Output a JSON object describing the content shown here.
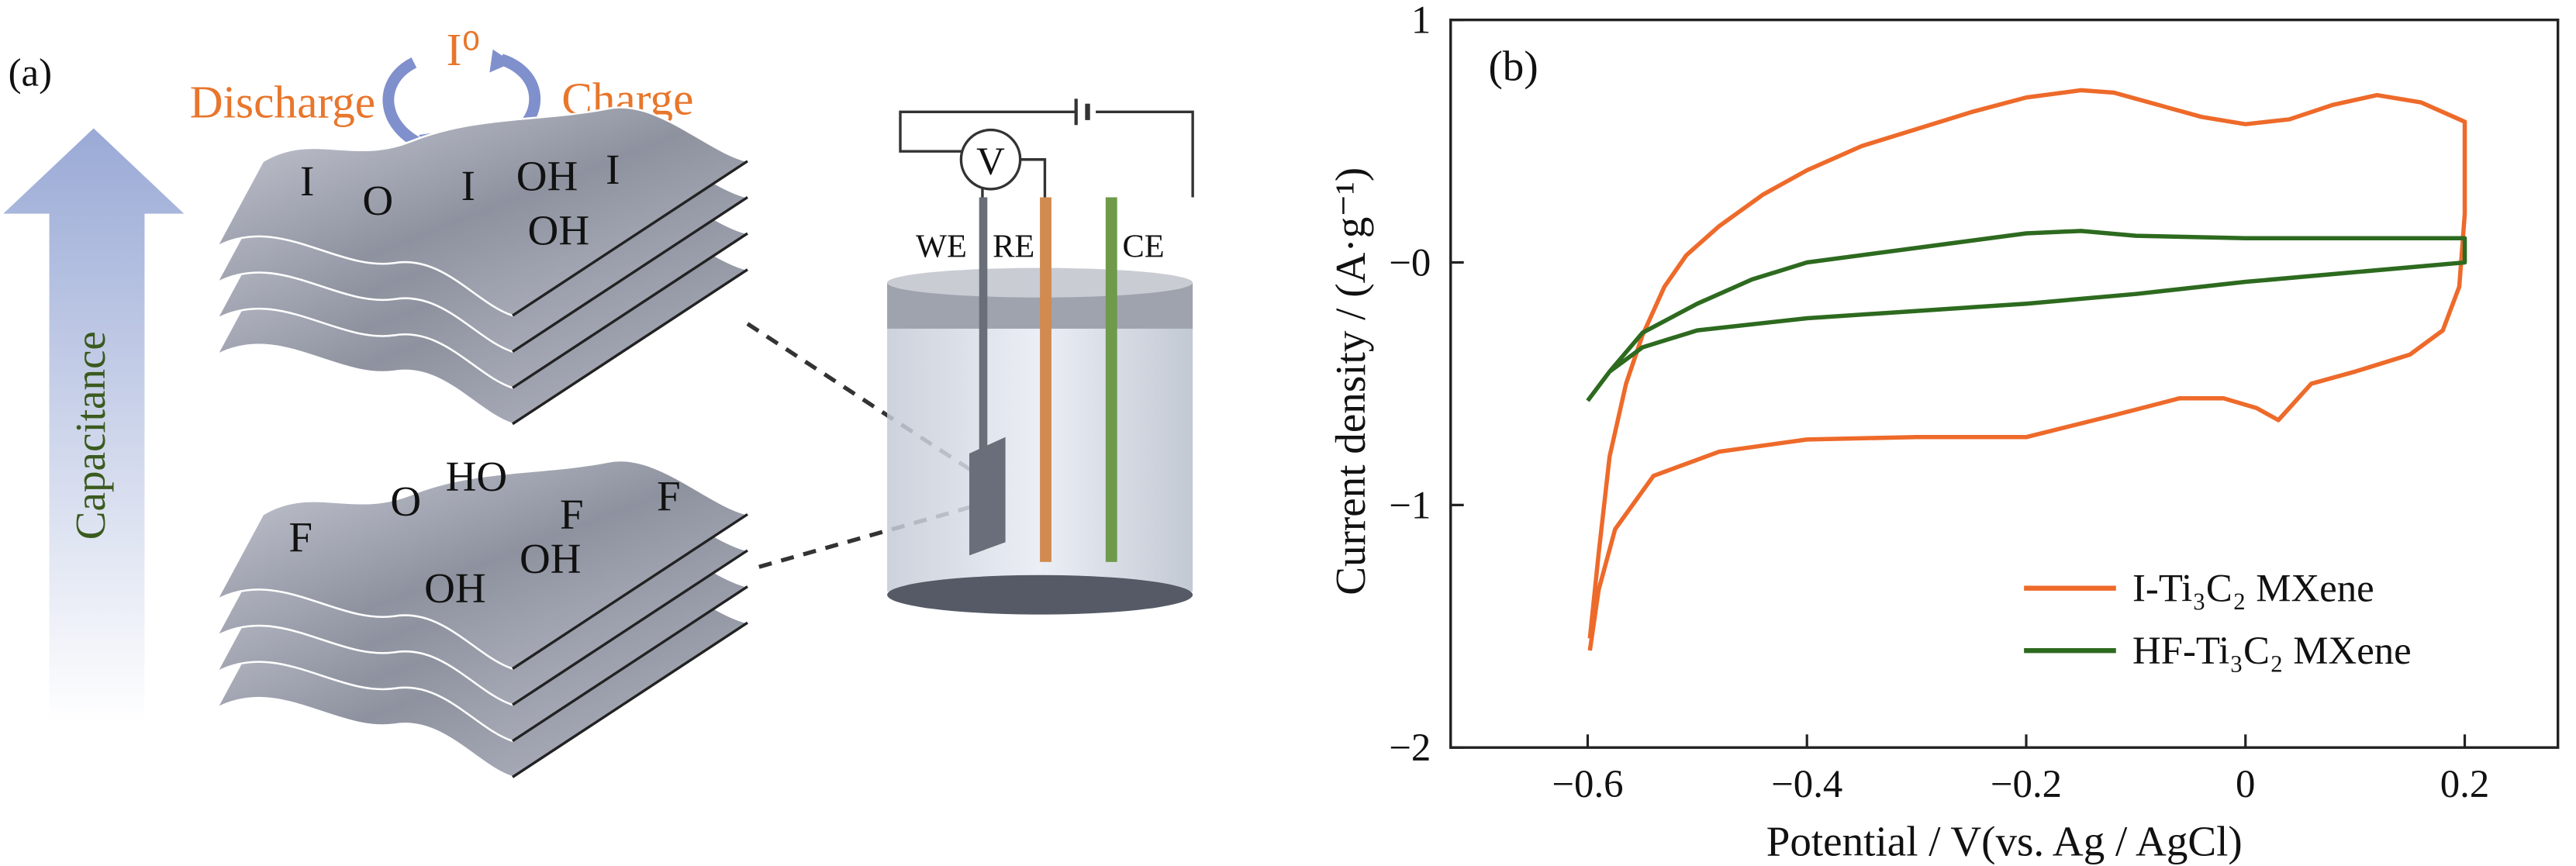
{
  "panel_a": {
    "label": "(a)",
    "species": "I⁰",
    "discharge": "Discharge",
    "charge": "Charge",
    "arrow_label": "Capacitance",
    "top_groups": [
      "I",
      "O",
      "I",
      "OH",
      "I",
      "OH"
    ],
    "bottom_groups": [
      "HO",
      "O",
      "F",
      "F",
      "F",
      "OH",
      "OH"
    ],
    "cell": {
      "voltmeter": "V",
      "electrodes": [
        "WE",
        "RE",
        "CE"
      ]
    }
  },
  "chart_data": {
    "type": "line",
    "panel_label": "(b)",
    "x_label": "Potential / V(vs. Ag / AgCl)",
    "y_label": "Current density / (A·g⁻¹)",
    "xlim": [
      -0.725,
      0.285
    ],
    "ylim": [
      -2,
      1
    ],
    "xticks": [
      {
        "value": -0.6,
        "label": "−0.6"
      },
      {
        "value": -0.4,
        "label": "−0.4"
      },
      {
        "value": -0.2,
        "label": "−0.2"
      },
      0,
      0.2
    ],
    "yticks": [
      1,
      {
        "value": 0,
        "label": "−0"
      },
      {
        "value": -1,
        "label": "−1"
      },
      {
        "value": -2,
        "label": "−2"
      }
    ],
    "legend": "lower right",
    "series": [
      {
        "name": "I-Ti₃C₂ MXene",
        "color": "#ee6a2a",
        "x": [
          -0.598,
          -0.59,
          -0.58,
          -0.565,
          -0.55,
          -0.53,
          -0.51,
          -0.48,
          -0.44,
          -0.4,
          -0.35,
          -0.3,
          -0.25,
          -0.2,
          -0.15,
          -0.12,
          -0.08,
          -0.04,
          0,
          0.04,
          0.08,
          0.12,
          0.16,
          0.2,
          0.2,
          0.195,
          0.18,
          0.15,
          0.1,
          0.06,
          0.04,
          0.03,
          0.01,
          -0.02,
          -0.06,
          -0.12,
          -0.2,
          -0.3,
          -0.4,
          -0.48,
          -0.54,
          -0.575,
          -0.59,
          -0.598
        ],
        "values": [
          -1.55,
          -1.2,
          -0.8,
          -0.5,
          -0.3,
          -0.1,
          0.03,
          0.15,
          0.28,
          0.38,
          0.48,
          0.55,
          0.62,
          0.68,
          0.71,
          0.7,
          0.65,
          0.6,
          0.57,
          0.59,
          0.65,
          0.69,
          0.66,
          0.58,
          0.2,
          -0.1,
          -0.28,
          -0.38,
          -0.45,
          -0.5,
          -0.6,
          -0.65,
          -0.6,
          -0.56,
          -0.56,
          -0.63,
          -0.72,
          -0.72,
          -0.73,
          -0.78,
          -0.88,
          -1.1,
          -1.35,
          -1.6
        ]
      },
      {
        "name": "HF-Ti₃C₂ MXene",
        "color": "#2d6a1f",
        "x": [
          -0.6,
          -0.58,
          -0.55,
          -0.5,
          -0.45,
          -0.4,
          -0.3,
          -0.2,
          -0.15,
          -0.1,
          0,
          0.1,
          0.2,
          0.2,
          0.1,
          0,
          -0.1,
          -0.2,
          -0.3,
          -0.4,
          -0.5,
          -0.55,
          -0.58,
          -0.6
        ],
        "values": [
          -0.57,
          -0.45,
          -0.29,
          -0.17,
          -0.07,
          0.0,
          0.06,
          0.12,
          0.13,
          0.11,
          0.1,
          0.1,
          0.1,
          0.0,
          -0.04,
          -0.08,
          -0.13,
          -0.17,
          -0.2,
          -0.23,
          -0.28,
          -0.35,
          -0.45,
          -0.57
        ]
      }
    ]
  }
}
